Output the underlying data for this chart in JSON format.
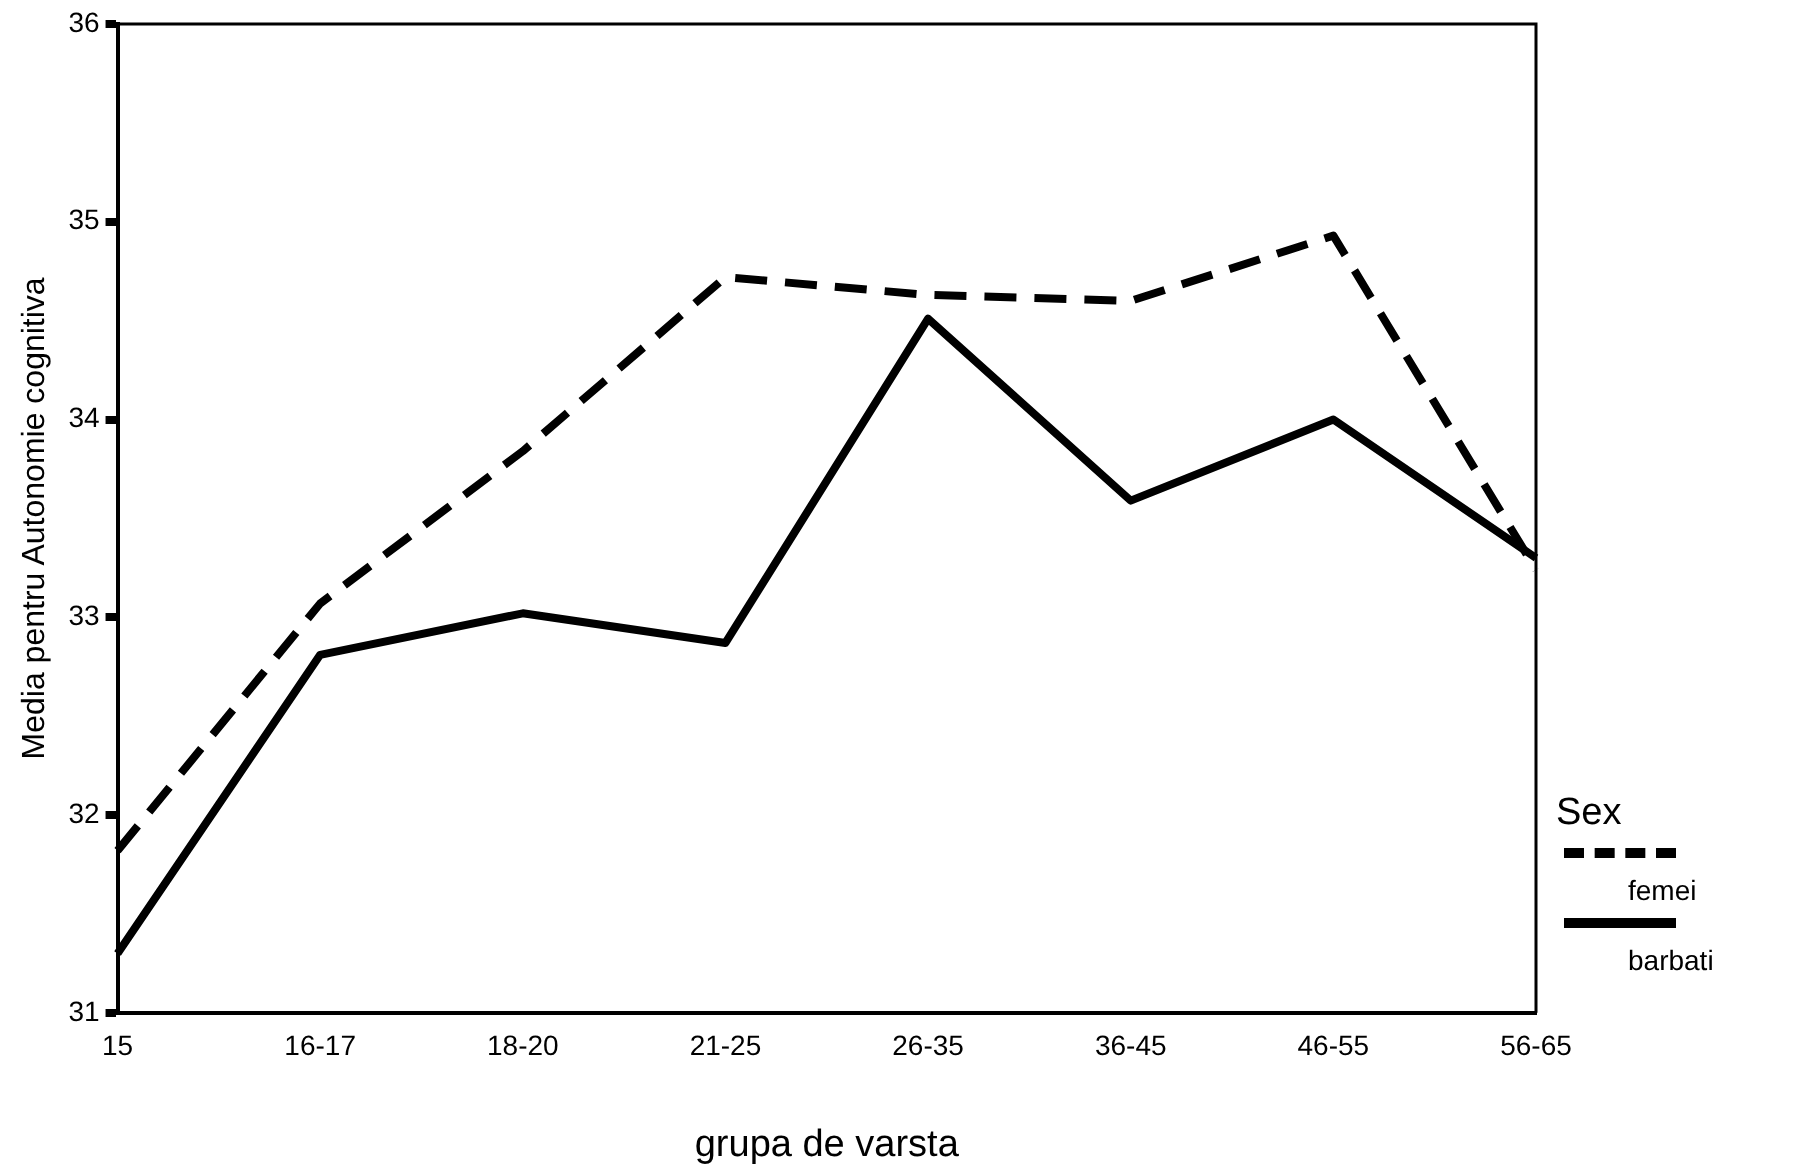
{
  "chart_data": {
    "type": "line",
    "xlabel": "grupa de varsta",
    "ylabel": "Media pentru Autonomie cognitiva",
    "legend_title": "Sex",
    "legend": "right",
    "categories": [
      "15",
      "16-17",
      "18-20",
      "21-25",
      "26-35",
      "36-45",
      "46-55",
      "56-65"
    ],
    "ylim": [
      31,
      36
    ],
    "yticks": [
      31,
      32,
      33,
      34,
      35,
      36
    ],
    "grid": false,
    "marker": "none",
    "series": [
      {
        "name": "femei",
        "color": "#000000",
        "line_style": "dashed",
        "values": [
          31.82,
          33.07,
          33.84,
          34.72,
          34.63,
          34.6,
          34.93,
          33.24
        ]
      },
      {
        "name": "barbati",
        "color": "#000000",
        "line_style": "solid",
        "values": [
          31.3,
          32.81,
          33.02,
          32.87,
          34.51,
          33.59,
          34.0,
          33.3
        ]
      }
    ]
  }
}
